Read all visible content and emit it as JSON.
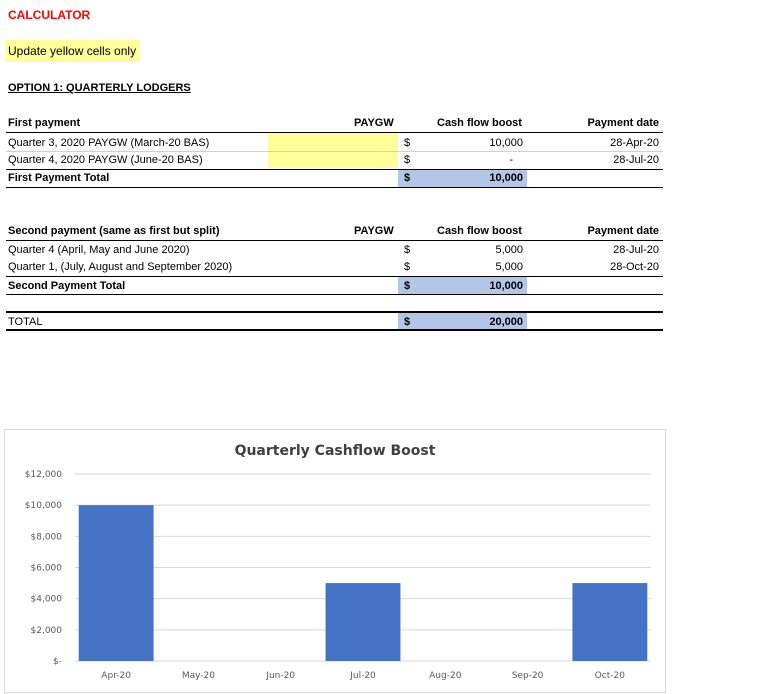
{
  "header": {
    "title": "CALCULATOR",
    "note": "Update yellow cells only",
    "option_title": "OPTION 1: QUARTERLY LODGERS"
  },
  "first_payment": {
    "label": "First payment",
    "col_paygw": "PAYGW",
    "col_boost": "Cash flow boost",
    "col_date": "Payment date",
    "rows": [
      {
        "label": "Quarter 3, 2020 PAYGW (March-20 BAS)",
        "currency": "$",
        "boost": "10,000",
        "date": "28-Apr-20"
      },
      {
        "label": "Quarter 4, 2020 PAYGW (June-20 BAS)",
        "currency": "$",
        "boost": "-",
        "date": "28-Jul-20"
      }
    ],
    "total_label": "First Payment Total",
    "total_currency": "$",
    "total_value": "10,000"
  },
  "second_payment": {
    "label": "Second payment (same as first but split)",
    "col_paygw": "PAYGW",
    "col_boost": "Cash flow boost",
    "col_date": "Payment date",
    "rows": [
      {
        "label": "Quarter 4 (April, May and June 2020)",
        "currency": "$",
        "boost": "5,000",
        "date": "28-Jul-20"
      },
      {
        "label": "Quarter 1, (July, August and September 2020)",
        "currency": "$",
        "boost": "5,000",
        "date": "28-Oct-20"
      }
    ],
    "total_label": "Second Payment Total",
    "total_currency": "$",
    "total_value": "10,000"
  },
  "total": {
    "label": "TOTAL",
    "currency": "$",
    "value": "20,000"
  },
  "colors": {
    "title_red": "#ff0000",
    "yellow_cell": "#ffff99",
    "blue_cell": "#b4c6e7",
    "bar": "#4472c4"
  },
  "chart_data": {
    "type": "bar",
    "title": "Quarterly Cashflow Boost",
    "categories": [
      "Apr-20",
      "May-20",
      "Jun-20",
      "Jul-20",
      "Aug-20",
      "Sep-20",
      "Oct-20"
    ],
    "values": [
      10000,
      0,
      0,
      5000,
      0,
      0,
      5000
    ],
    "ylim": [
      0,
      12000
    ],
    "yticks": [
      0,
      2000,
      4000,
      6000,
      8000,
      10000,
      12000
    ],
    "ytick_labels": [
      "$-",
      "$2,000",
      "$4,000",
      "$6,000",
      "$8,000",
      "$10,000",
      "$12,000"
    ],
    "grid": true,
    "xlabel": "",
    "ylabel": ""
  }
}
